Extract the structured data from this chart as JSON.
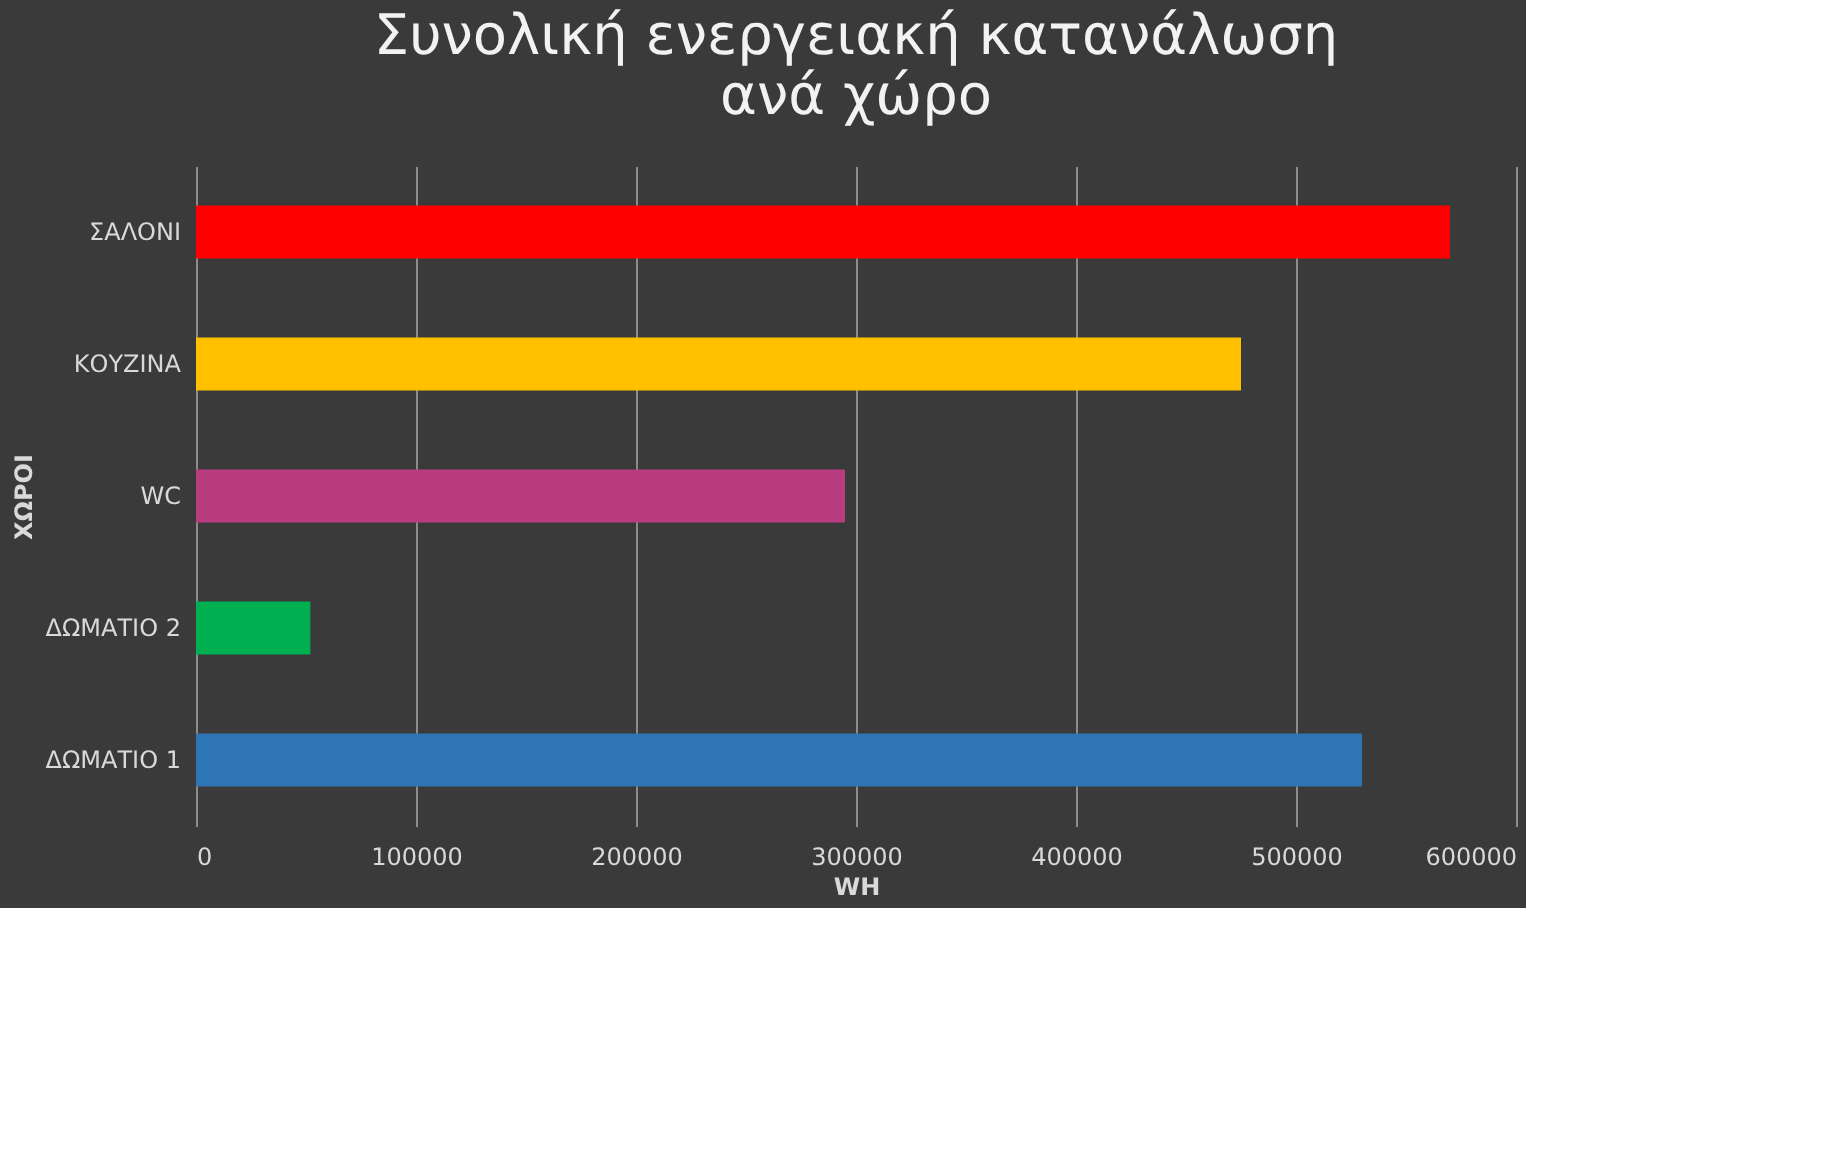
{
  "chart_data": {
    "type": "bar",
    "orientation": "horizontal",
    "title": "Συνολική ενεργειακή κατανάλωση ανά χώρο",
    "xlabel": "WH",
    "ylabel": "ΧΩΡΟΙ",
    "categories": [
      "ΣΑΛΟΝΙ",
      "ΚΟΥΖΙΝΑ",
      "WC",
      "ΔΩΜΑΤΙΟ 2",
      "ΔΩΜΑΤΙΟ 1"
    ],
    "values": [
      570000,
      475000,
      295000,
      52000,
      530000
    ],
    "colors": [
      "#ff0000",
      "#ffc000",
      "#b83b7e",
      "#00b050",
      "#2e75b6"
    ],
    "xlim": [
      0,
      600000
    ],
    "xticks": [
      0,
      100000,
      200000,
      300000,
      400000,
      500000,
      600000
    ],
    "grid": "x",
    "legend": false
  }
}
